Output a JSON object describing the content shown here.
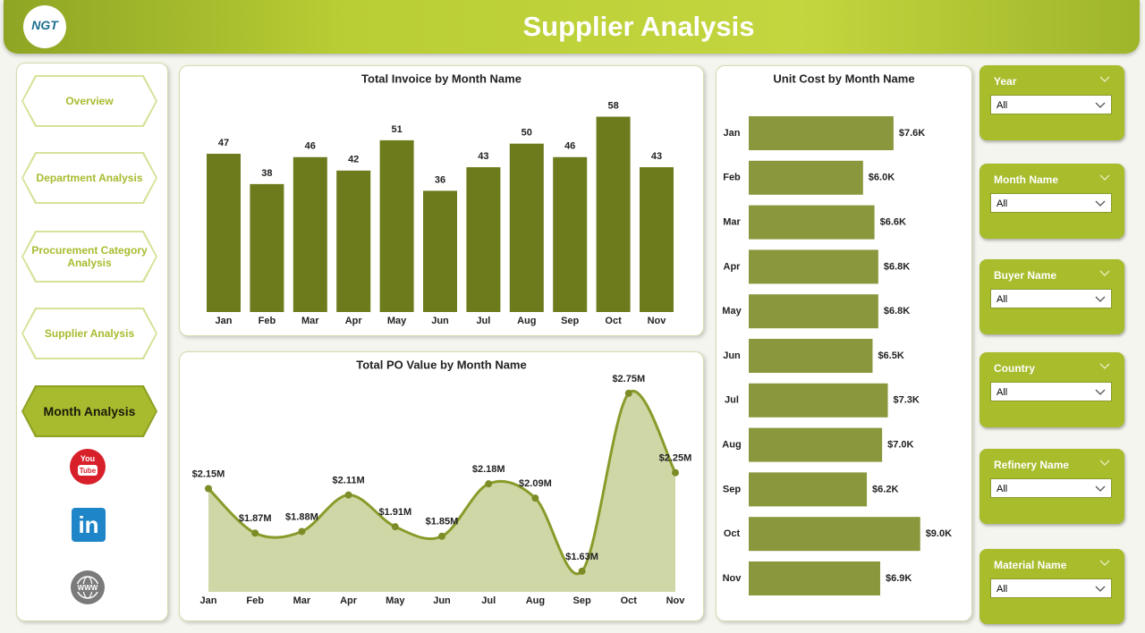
{
  "header": {
    "title": "Supplier Analysis",
    "logo": "NGT"
  },
  "nav": {
    "items": [
      "Overview",
      "Department Analysis",
      "Procurement Category Analysis",
      "Supplier Analysis",
      "Month Analysis"
    ],
    "active": 4
  },
  "icons": {
    "youtube": [
      "You",
      "Tube"
    ],
    "linkedin": "in",
    "web": "WWW"
  },
  "filters": [
    {
      "label": "Year",
      "value": "All"
    },
    {
      "label": "Month Name",
      "value": "All"
    },
    {
      "label": "Buyer Name",
      "value": "All"
    },
    {
      "label": "Country",
      "value": "All"
    },
    {
      "label": "Refinery Name",
      "value": "All"
    },
    {
      "label": "Material Name",
      "value": "All"
    }
  ],
  "chart_data": [
    {
      "type": "bar",
      "title": "Total Invoice by Month Name",
      "categories": [
        "Jan",
        "Feb",
        "Mar",
        "Apr",
        "May",
        "Jun",
        "Jul",
        "Aug",
        "Sep",
        "Oct",
        "Nov"
      ],
      "values": [
        47,
        38,
        46,
        42,
        51,
        36,
        43,
        50,
        46,
        58,
        43
      ],
      "color": "#6e7b1c",
      "ylim": [
        0,
        60
      ]
    },
    {
      "type": "line",
      "title": "Total PO Value by Month Name",
      "categories": [
        "Jan",
        "Feb",
        "Mar",
        "Apr",
        "May",
        "Jun",
        "Jul",
        "Aug",
        "Sep",
        "Oct",
        "Nov"
      ],
      "values": [
        2150000,
        1870000,
        1880000,
        2110000,
        1910000,
        1850000,
        2180000,
        2090000,
        1630000,
        2750000,
        2250000
      ],
      "value_labels": [
        "$2.15M",
        "$1.87M",
        "$1.88M",
        "$2.11M",
        "$1.91M",
        "$1.85M",
        "$2.18M",
        "$2.09M",
        "$1.63M",
        "$2.75M",
        "$2.25M"
      ],
      "color": "#8a9a2a",
      "ylim": [
        1500000,
        2800000
      ]
    },
    {
      "type": "barh",
      "title": "Unit Cost by Month Name",
      "categories": [
        "Jan",
        "Feb",
        "Mar",
        "Apr",
        "May",
        "Jun",
        "Jul",
        "Aug",
        "Sep",
        "Oct",
        "Nov"
      ],
      "values": [
        7600,
        6000,
        6600,
        6800,
        6800,
        6500,
        7300,
        7000,
        6200,
        9000,
        6900
      ],
      "value_labels": [
        "$7.6K",
        "$6.0K",
        "$6.6K",
        "$6.8K",
        "$6.8K",
        "$6.5K",
        "$7.3K",
        "$7.0K",
        "$6.2K",
        "$9.0K",
        "$6.9K"
      ],
      "color": "#8a973c",
      "xlim": [
        0,
        10000
      ]
    }
  ]
}
